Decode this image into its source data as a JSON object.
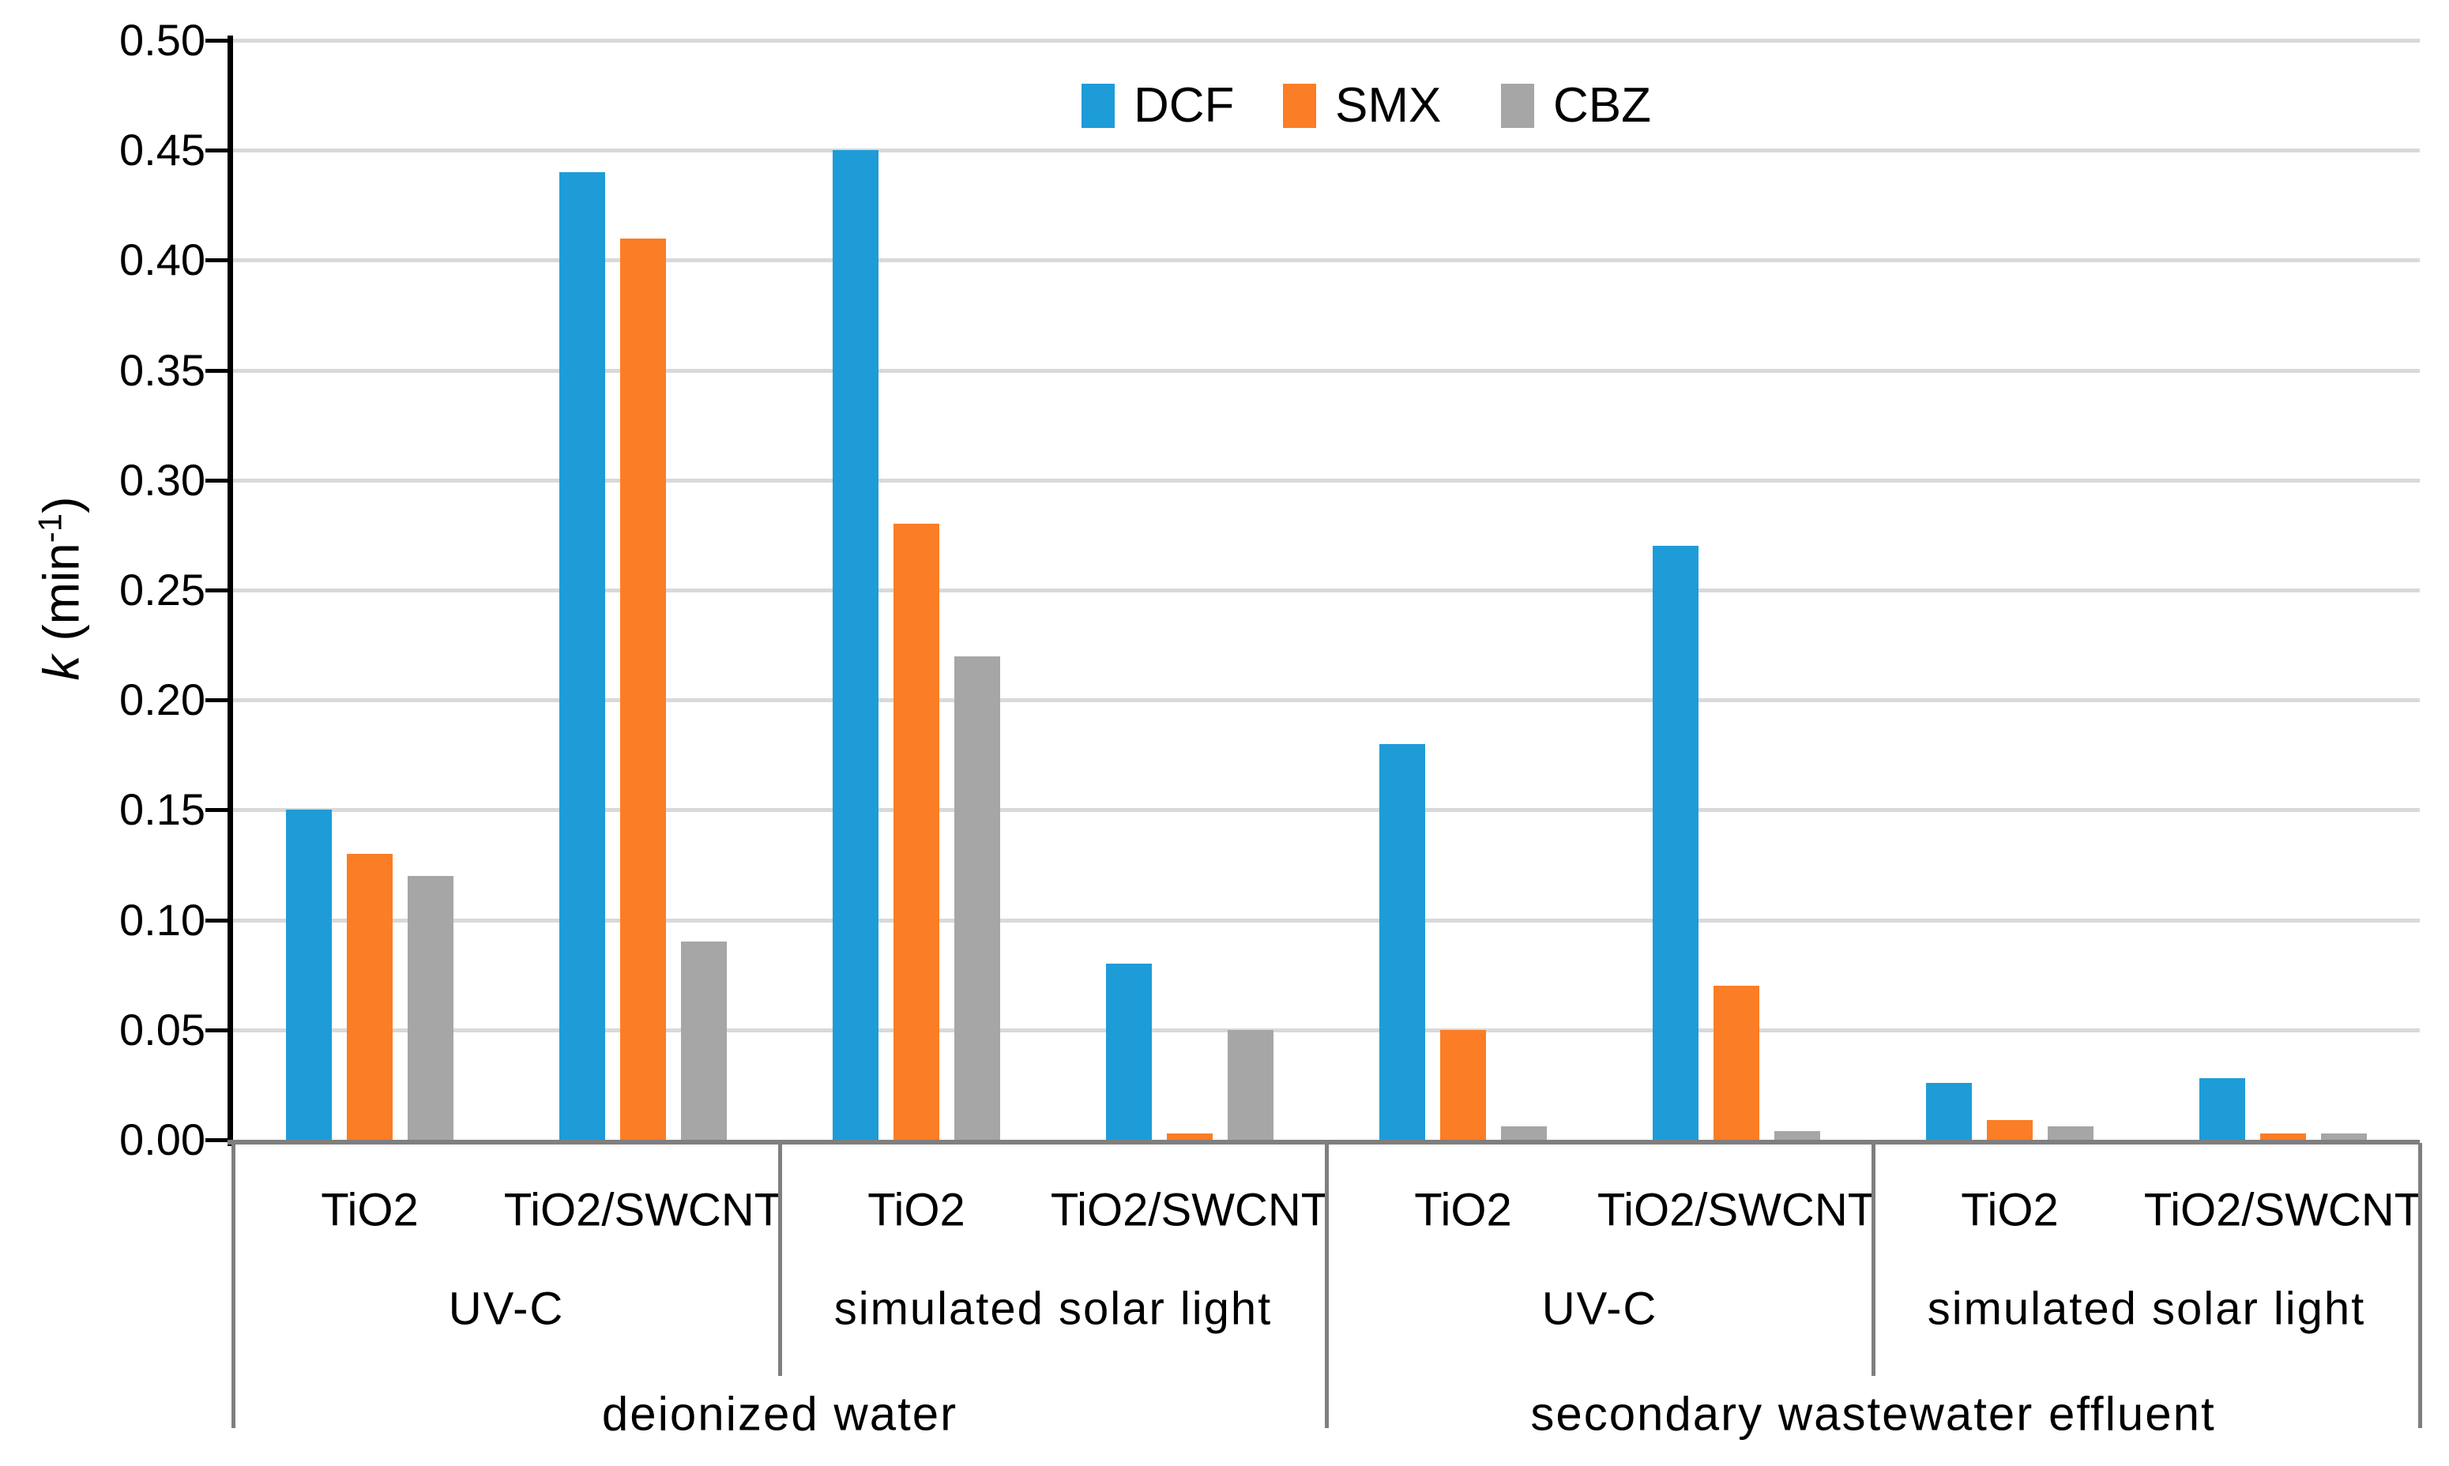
{
  "page": {
    "background": "#ffffff"
  },
  "chart_data": {
    "type": "bar",
    "title": "",
    "ylabel": "k (min⁻¹)",
    "ylabel_parts": {
      "symbol": "k",
      "open": " (min",
      "sup": "-1",
      "close": ")"
    },
    "y_axis": {
      "min": 0,
      "max": 0.5,
      "step": 0.05,
      "tick_labels": [
        "0.00",
        "0.05",
        "0.10",
        "0.15",
        "0.20",
        "0.25",
        "0.30",
        "0.35",
        "0.40",
        "0.45",
        "0.50"
      ],
      "gridlines": true
    },
    "legend": {
      "position": "top-center",
      "items": [
        {
          "label": "DCF",
          "color": "#1E9CD8"
        },
        {
          "label": "SMX",
          "color": "#FB7D25"
        },
        {
          "label": "CBZ",
          "color": "#A6A6A6"
        }
      ]
    },
    "colors": {
      "gridline": "#D9D9D9",
      "axis_line": "#000000",
      "category_line": "#7F7F7F"
    },
    "groups": [
      {
        "water": "deionized water",
        "lights": [
          {
            "light": "UV-C",
            "clusters": [
              {
                "catalyst": "TiO2",
                "values": [
                  0.15,
                  0.13,
                  0.12
                ]
              },
              {
                "catalyst": "TiO2/SWCNT",
                "values": [
                  0.44,
                  0.41,
                  0.09
                ]
              }
            ]
          },
          {
            "light": "simulated solar light",
            "clusters": [
              {
                "catalyst": "TiO2",
                "values": [
                  0.45,
                  0.28,
                  0.22
                ]
              },
              {
                "catalyst": "TiO2/SWCNT",
                "values": [
                  0.08,
                  0.003,
                  0.05
                ]
              }
            ]
          }
        ]
      },
      {
        "water": "secondary wastewater effluent",
        "lights": [
          {
            "light": "UV-C",
            "clusters": [
              {
                "catalyst": "TiO2",
                "values": [
                  0.18,
                  0.05,
                  0.006
                ]
              },
              {
                "catalyst": "TiO2/SWCNT",
                "values": [
                  0.27,
                  0.07,
                  0.004
                ]
              }
            ]
          },
          {
            "light": "simulated solar light",
            "clusters": [
              {
                "catalyst": "TiO2",
                "values": [
                  0.026,
                  0.009,
                  0.006
                ]
              },
              {
                "catalyst": "TiO2/SWCNT",
                "values": [
                  0.028,
                  0.003,
                  0.003
                ]
              }
            ]
          }
        ]
      }
    ]
  }
}
